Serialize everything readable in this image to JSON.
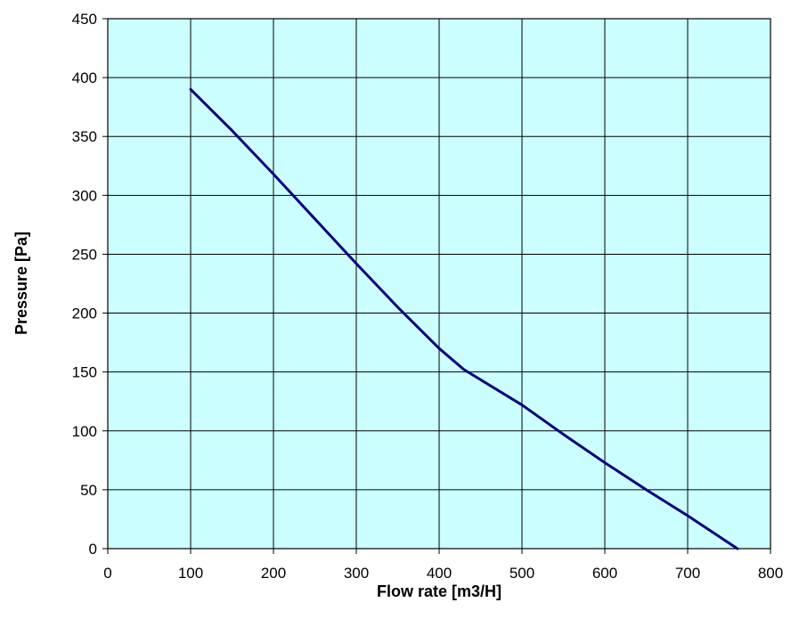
{
  "chart_data": {
    "type": "line",
    "title": "",
    "xlabel": "Flow rate [m3/H]",
    "ylabel": "Pressure [Pa]",
    "xlim": [
      0,
      800
    ],
    "ylim": [
      0,
      450
    ],
    "xticks": [
      0,
      100,
      200,
      300,
      400,
      500,
      600,
      700,
      800
    ],
    "yticks": [
      0,
      50,
      100,
      150,
      200,
      250,
      300,
      350,
      400,
      450
    ],
    "grid": true,
    "legend": "none",
    "colors": {
      "plot_background": "#CCFFFF",
      "line": "#000080",
      "grid": "#000000"
    },
    "series": [
      {
        "x": [
          100,
          150,
          200,
          250,
          300,
          350,
          400,
          430,
          500,
          550,
          600,
          650,
          700,
          760
        ],
        "y": [
          390,
          355,
          318,
          280,
          242,
          205,
          170,
          152,
          122,
          97,
          73,
          50,
          28,
          0
        ]
      }
    ]
  }
}
